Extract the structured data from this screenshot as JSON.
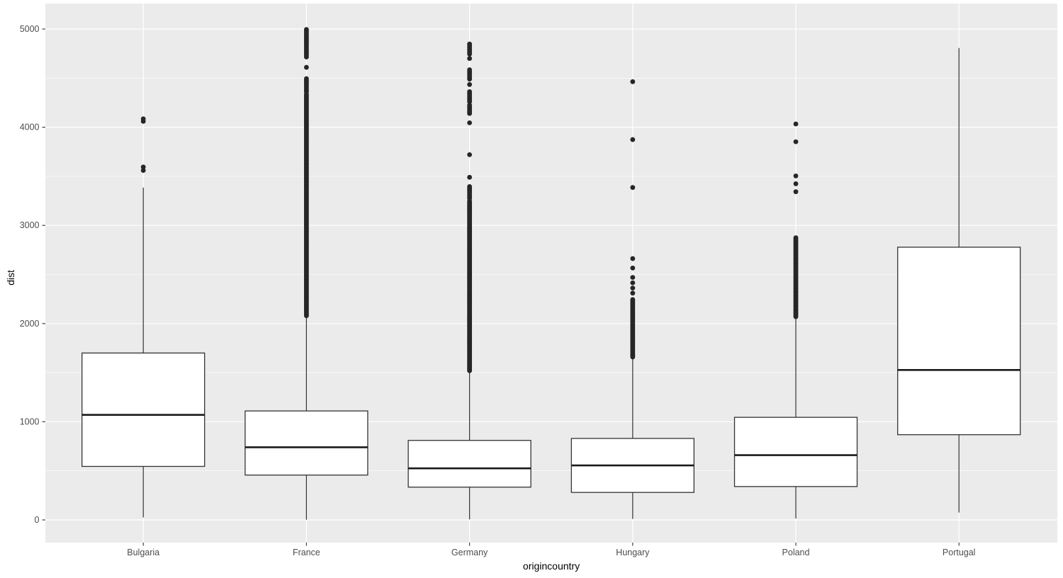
{
  "chart_data": {
    "type": "boxplot",
    "title": "",
    "xlabel": "origincountry",
    "ylabel": "dist",
    "categories": [
      "Bulgaria",
      "France",
      "Germany",
      "Hungary",
      "Poland",
      "Portugal"
    ],
    "y_axis": {
      "ticks": [
        0,
        1000,
        2000,
        3000,
        4000,
        5000
      ],
      "minor_ticks": [
        500,
        1500,
        2500,
        3500,
        4500
      ],
      "range": [
        -230,
        5260
      ],
      "grid": true
    },
    "series": [
      {
        "category": "Bulgaria",
        "whisker_low": 25,
        "q1": 545,
        "median": 1070,
        "q3": 1700,
        "whisker_high": 3385,
        "outliers": [
          3560,
          3595,
          4060,
          4085
        ],
        "outlier_runs": []
      },
      {
        "category": "France",
        "whisker_low": 2,
        "q1": 457,
        "median": 740,
        "q3": 1110,
        "whisker_high": 2070,
        "outliers": [
          4610
        ],
        "outlier_runs": [
          {
            "from": 2080,
            "to": 4345,
            "step": 12
          },
          {
            "from": 4360,
            "to": 4500,
            "step": 15
          },
          {
            "from": 4715,
            "to": 5000,
            "step": 14
          }
        ]
      },
      {
        "category": "Germany",
        "whisker_low": 5,
        "q1": 334,
        "median": 525,
        "q3": 810,
        "whisker_high": 1510,
        "outliers": [
          3490,
          3720,
          4045,
          4435,
          4700
        ],
        "outlier_runs": [
          {
            "from": 1520,
            "to": 3250,
            "step": 11
          },
          {
            "from": 3275,
            "to": 3400,
            "step": 15
          },
          {
            "from": 4140,
            "to": 4230,
            "step": 17
          },
          {
            "from": 4260,
            "to": 4370,
            "step": 17
          },
          {
            "from": 4490,
            "to": 4600,
            "step": 19
          },
          {
            "from": 4745,
            "to": 4855,
            "step": 17
          }
        ]
      },
      {
        "category": "Hungary",
        "whisker_low": 10,
        "q1": 280,
        "median": 555,
        "q3": 830,
        "whisker_high": 1650,
        "outliers": [
          2310,
          2362,
          2415,
          2470,
          2566,
          2662,
          3386,
          3874,
          4464
        ],
        "outlier_runs": [
          {
            "from": 1660,
            "to": 2250,
            "step": 13
          }
        ]
      },
      {
        "category": "Poland",
        "whisker_low": 15,
        "q1": 340,
        "median": 660,
        "q3": 1045,
        "whisker_high": 2050,
        "outliers": [
          3343,
          3424,
          3504,
          3852,
          4033
        ],
        "outlier_runs": [
          {
            "from": 2070,
            "to": 2880,
            "step": 12
          }
        ]
      },
      {
        "category": "Portugal",
        "whisker_low": 75,
        "q1": 868,
        "median": 1527,
        "q3": 2778,
        "whisker_high": 4807,
        "outliers": [],
        "outlier_runs": []
      }
    ],
    "style": {
      "panel_bg": "#ebebeb",
      "outer_bg": "#ffffff",
      "grid_color": "#ffffff",
      "box_fill": "#ffffff",
      "box_stroke": "#333333",
      "median_color": "#1a1a1a",
      "whisker_color": "#333333",
      "outlier_color": "#262626",
      "axis_text_color": "#4d4d4d",
      "axis_title_color": "#000000",
      "tick_color": "#333333"
    }
  }
}
